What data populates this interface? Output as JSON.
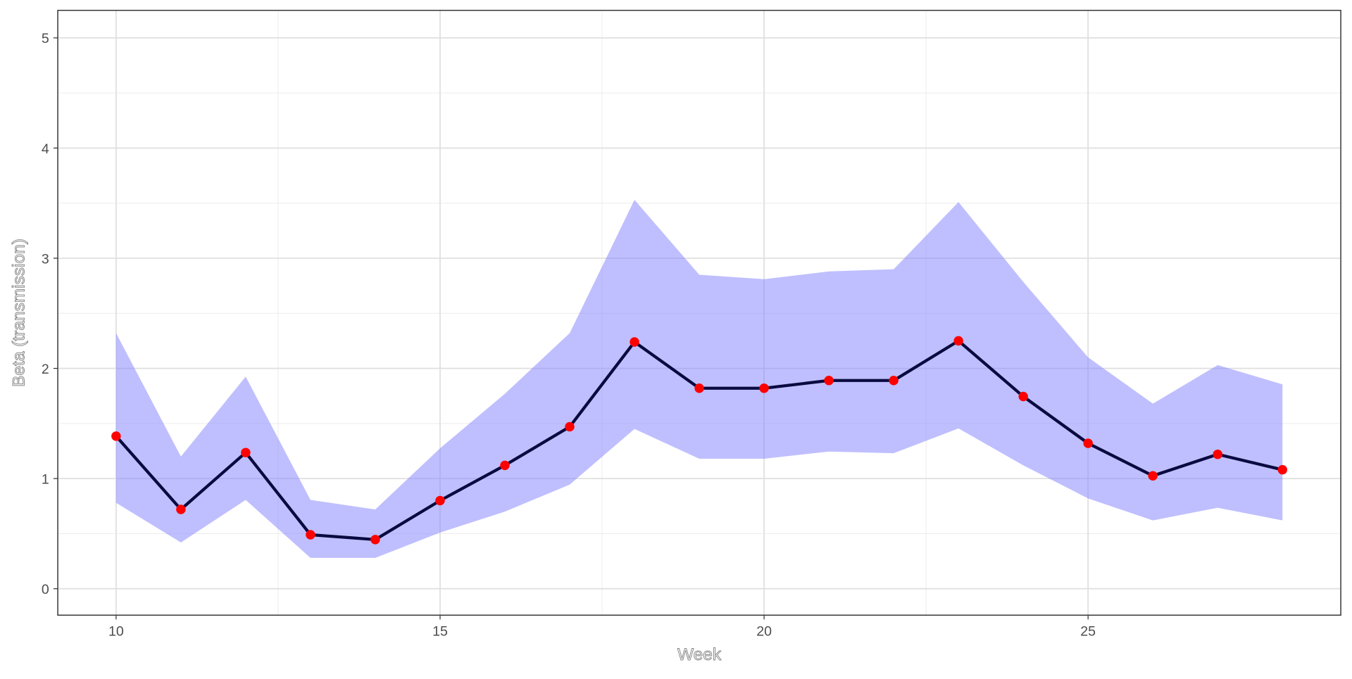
{
  "chart_data": {
    "type": "line",
    "x_label": "Week",
    "y_label": "Beta (transmission)",
    "x": [
      10,
      11,
      12,
      13,
      14,
      15,
      16,
      17,
      18,
      19,
      20,
      21,
      22,
      23,
      24,
      25,
      26,
      27,
      28
    ],
    "values": [
      1.385,
      0.72,
      1.236,
      0.49,
      0.446,
      0.8,
      1.12,
      1.47,
      2.24,
      1.82,
      1.82,
      1.89,
      1.89,
      2.25,
      1.745,
      1.32,
      1.025,
      1.22,
      1.08
    ],
    "upper": [
      2.32,
      1.2,
      1.925,
      0.806,
      0.72,
      1.275,
      1.77,
      2.32,
      3.53,
      2.85,
      2.81,
      2.88,
      2.9,
      3.51,
      2.785,
      2.1,
      1.68,
      2.03,
      1.855
    ],
    "lower": [
      0.78,
      0.42,
      0.806,
      0.28,
      0.28,
      0.51,
      0.7,
      0.945,
      1.45,
      1.18,
      1.18,
      1.245,
      1.23,
      1.455,
      1.12,
      0.82,
      0.62,
      0.735,
      0.62
    ],
    "line_color": "#0a0a40",
    "point_color": "#ff0000",
    "band_color": "#8080ff",
    "xlim": [
      9.1,
      28.9
    ],
    "ylim": [
      -0.24,
      5.25
    ],
    "xticks": [
      10,
      15,
      20,
      25
    ],
    "yticks": [
      0,
      1,
      2,
      3,
      4,
      5
    ],
    "grid": true
  }
}
